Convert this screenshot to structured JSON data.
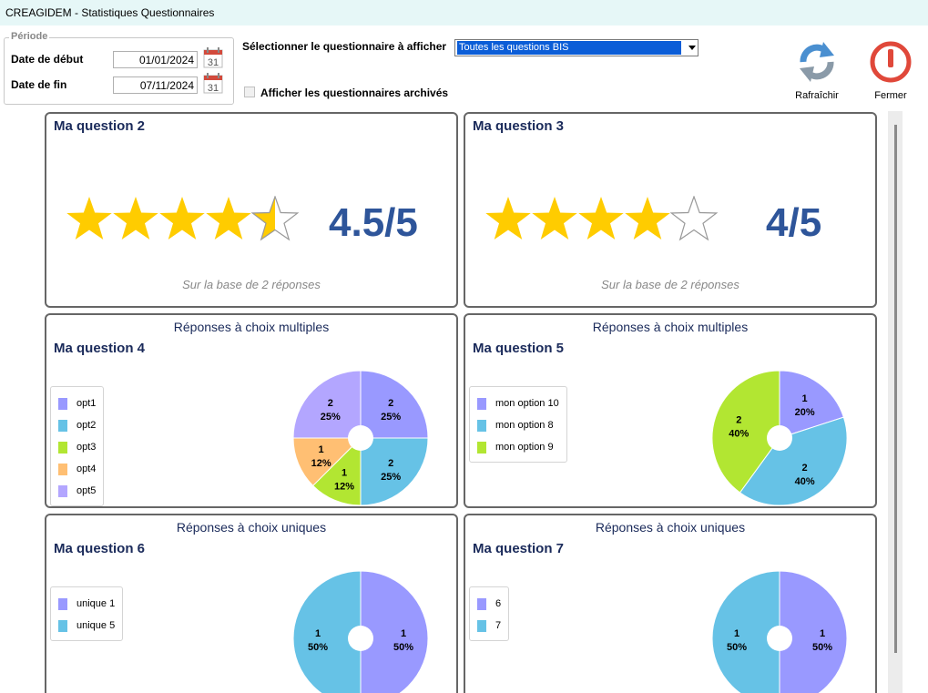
{
  "window": {
    "title": "CREAGIDEM - Statistiques Questionnaires"
  },
  "periode": {
    "legend": "Période",
    "start_label": "Date de début",
    "start_value": "01/01/2024",
    "end_label": "Date de fin",
    "end_value": "07/11/2024",
    "calendar_day": "31"
  },
  "selector": {
    "label": "Sélectionner le questionnaire à afficher",
    "selected": "Toutes les questions BIS"
  },
  "archive": {
    "label": "Afficher les questionnaires archivés",
    "checked": false
  },
  "toolbar": {
    "refresh_label": "Rafraîchir",
    "close_label": "Fermer"
  },
  "panels": [
    {
      "type": "rating",
      "question": "Ma question 2",
      "rating": 4.5,
      "max": 5,
      "score_text": "4.5/5",
      "basis": "Sur la base de 2 réponses"
    },
    {
      "type": "rating",
      "question": "Ma question 3",
      "rating": 4,
      "max": 5,
      "score_text": "4/5",
      "basis": "Sur la base de 2 réponses"
    },
    {
      "type": "pie",
      "header": "Réponses à choix multiples",
      "question": "Ma question 4",
      "slices": [
        {
          "label": "opt1",
          "count": 2,
          "pct": "25%",
          "color": "#9999ff"
        },
        {
          "label": "opt2",
          "count": 2,
          "pct": "25%",
          "color": "#66c2e6"
        },
        {
          "label": "opt3",
          "count": 1,
          "pct": "12%",
          "color": "#b2e632"
        },
        {
          "label": "opt4",
          "count": 1,
          "pct": "12%",
          "color": "#ffbf73"
        },
        {
          "label": "opt5",
          "count": 2,
          "pct": "25%",
          "color": "#b3a6ff"
        }
      ]
    },
    {
      "type": "pie",
      "header": "Réponses à choix multiples",
      "question": "Ma question 5",
      "slices": [
        {
          "label": "mon option 10",
          "count": 1,
          "pct": "20%",
          "color": "#9999ff"
        },
        {
          "label": "mon option 8",
          "count": 2,
          "pct": "40%",
          "color": "#66c2e6"
        },
        {
          "label": "mon option 9",
          "count": 2,
          "pct": "40%",
          "color": "#b2e632"
        }
      ]
    },
    {
      "type": "pie",
      "header": "Réponses à choix uniques",
      "question": "Ma question 6",
      "slices": [
        {
          "label": "unique 1",
          "count": 1,
          "pct": "50%",
          "color": "#9999ff"
        },
        {
          "label": "unique 5",
          "count": 1,
          "pct": "50%",
          "color": "#66c2e6"
        }
      ]
    },
    {
      "type": "pie",
      "header": "Réponses à choix uniques",
      "question": "Ma question 7",
      "slices": [
        {
          "label": "6",
          "count": 1,
          "pct": "50%",
          "color": "#9999ff"
        },
        {
          "label": "7",
          "count": 1,
          "pct": "50%",
          "color": "#66c2e6"
        }
      ]
    }
  ],
  "colors": {
    "star": "#ffcc00",
    "star_outline": "#999999",
    "score": "#2e559a",
    "refresh_blue": "#4a8fd0",
    "refresh_gray": "#8a9aa8",
    "close_red": "#e0483a",
    "calendar_red": "#d24a3c"
  }
}
